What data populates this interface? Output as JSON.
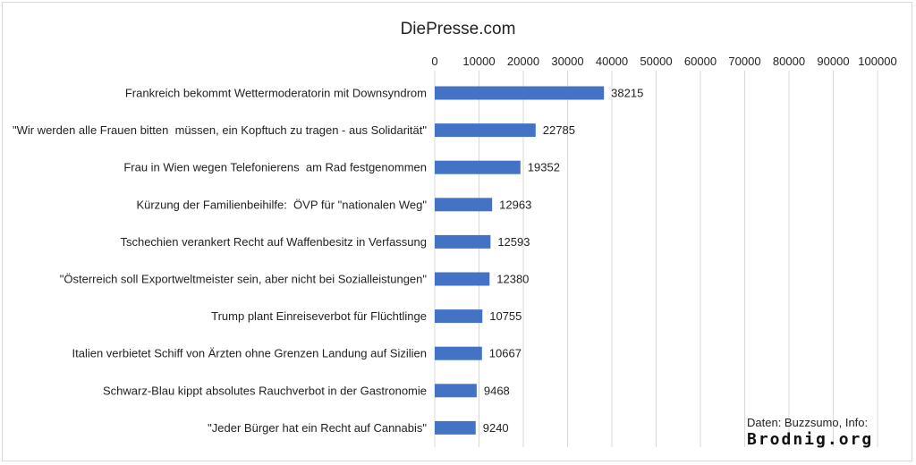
{
  "chart_data": {
    "type": "bar",
    "orientation": "horizontal",
    "title": "DiePresse.com",
    "xlabel": "",
    "ylabel": "",
    "xlim": [
      0,
      100000
    ],
    "x_ticks": [
      0,
      10000,
      20000,
      30000,
      40000,
      50000,
      60000,
      70000,
      80000,
      90000,
      100000
    ],
    "x_axis_position": "top",
    "grid": true,
    "bar_color": "#4472c4",
    "categories": [
      "Frankreich bekommt Wettermoderatorin mit Downsyndrom",
      "\"Wir werden alle Frauen bitten  müssen, ein Kopftuch zu tragen - aus Solidarität\"",
      "Frau in Wien wegen Telefonierens  am Rad festgenommen",
      "Kürzung der Familienbeihilfe:  ÖVP für \"nationalen Weg\"",
      "Tschechien verankert Recht auf Waffenbesitz in Verfassung",
      "\"Österreich soll Exportweltmeister sein, aber nicht bei Sozialleistungen\"",
      "Trump plant Einreiseverbot für Flüchtlinge",
      "Italien verbietet Schiff von Ärzten ohne Grenzen Landung auf Sizilien",
      "Schwarz-Blau kippt absolutes Rauchverbot in der Gastronomie",
      "\"Jeder Bürger hat ein Recht auf Cannabis\""
    ],
    "values": [
      38215,
      22785,
      19352,
      12963,
      12593,
      12380,
      10755,
      10667,
      9468,
      9240
    ]
  },
  "credit": {
    "line1": "Daten: Buzzsumo, Info:",
    "line2": "Brodnig.org"
  }
}
